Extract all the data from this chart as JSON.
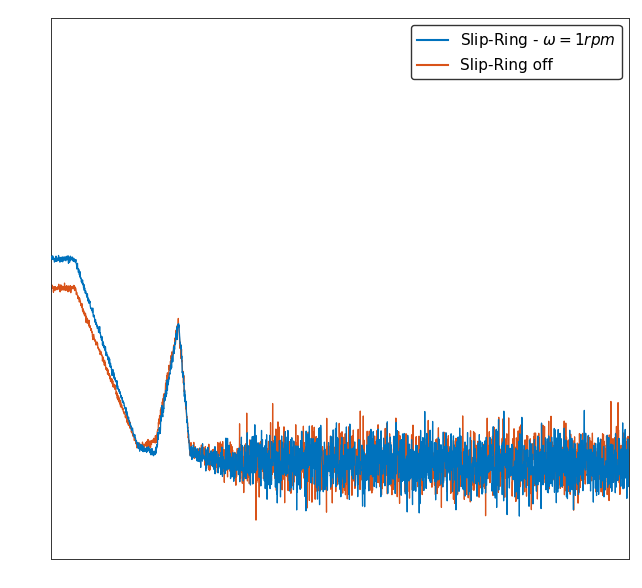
{
  "line1_color": "#0072BD",
  "line2_color": "#D95319",
  "legend1": "Slip-Ring - $\\omega = 1rpm$",
  "legend2": "Slip-Ring off",
  "background_color": "#ffffff",
  "fig_background": "#ffffff",
  "grid_color": "#b0b0b0",
  "grid_linestyle": "dotted",
  "linewidth": 0.9,
  "ylim": [
    -0.05,
    1.0
  ],
  "xlim": [
    0,
    1
  ]
}
